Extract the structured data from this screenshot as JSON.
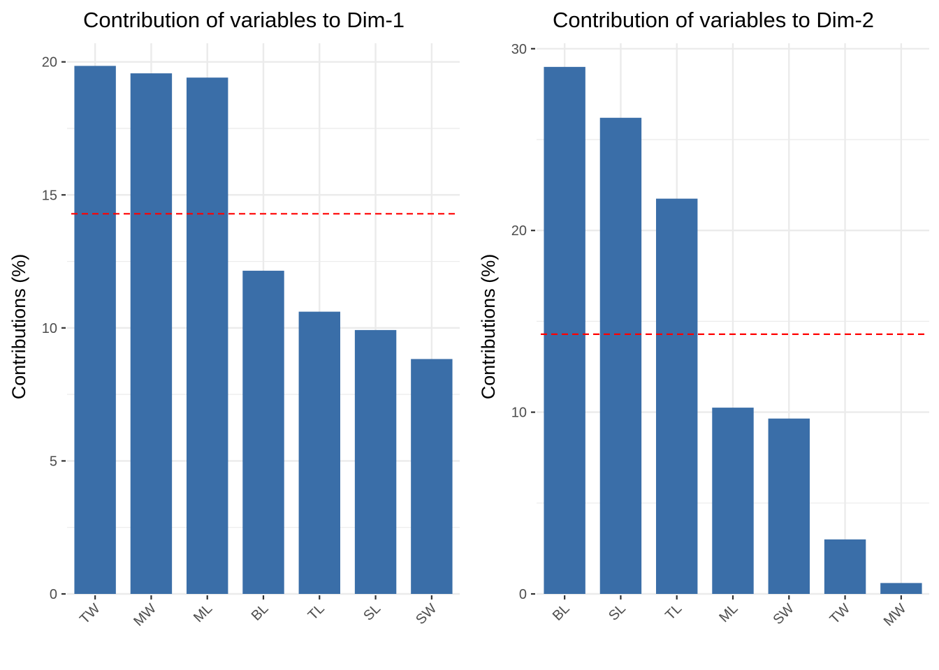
{
  "chart_data": [
    {
      "type": "bar",
      "title": "Contribution of variables to Dim-1",
      "xlabel": "",
      "ylabel": "Contributions (%)",
      "categories": [
        "TW",
        "MW",
        "ML",
        "BL",
        "TL",
        "SL",
        "SW"
      ],
      "values": [
        19.85,
        19.57,
        19.41,
        12.15,
        10.61,
        9.92,
        8.83
      ],
      "ylim": [
        0,
        20.7
      ],
      "yticks": [
        0,
        5,
        10,
        15,
        20
      ],
      "ytick_labels": [
        "0",
        "5",
        "10",
        "15",
        "20"
      ],
      "reference_line": 14.29,
      "bar_color": "#3A6EA8",
      "reference_color": "#FF0000",
      "grid": true
    },
    {
      "type": "bar",
      "title": "Contribution of variables to Dim-2",
      "xlabel": "",
      "ylabel": "Contributions (%)",
      "categories": [
        "BL",
        "SL",
        "TL",
        "ML",
        "SW",
        "TW",
        "MW"
      ],
      "values": [
        29.0,
        26.2,
        21.75,
        10.25,
        9.65,
        3.0,
        0.6
      ],
      "ylim": [
        0,
        30.3
      ],
      "yticks": [
        0,
        10,
        20,
        30
      ],
      "ytick_labels": [
        "0",
        "10",
        "20",
        "30"
      ],
      "reference_line": 14.29,
      "bar_color": "#3A6EA8",
      "reference_color": "#FF0000",
      "grid": true
    }
  ]
}
